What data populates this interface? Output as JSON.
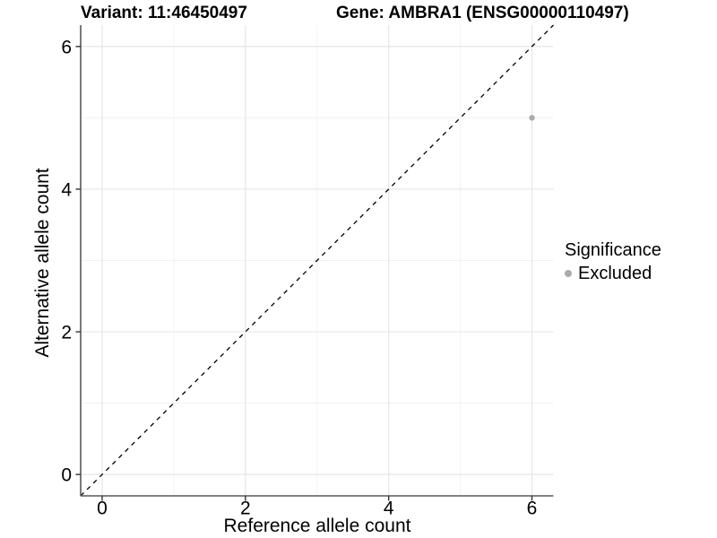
{
  "chart_data": {
    "type": "scatter",
    "title_left": "Variant: 11:46450497",
    "title_right": "Gene: AMBRA1 (ENSG00000110497)",
    "xlabel": "Reference allele count",
    "ylabel": "Alternative allele count",
    "xlim": [
      -0.3,
      6.3
    ],
    "ylim": [
      -0.3,
      6.3
    ],
    "x_major_ticks": [
      0,
      2,
      4,
      6
    ],
    "y_major_ticks": [
      0,
      2,
      4,
      6
    ],
    "x_minor_ticks": [
      1,
      3,
      5
    ],
    "y_minor_ticks": [
      1,
      3,
      5
    ],
    "grid": true,
    "identity_line": {
      "style": "dashed",
      "from": -0.3,
      "to": 6.3
    },
    "points": [
      {
        "x": 6,
        "y": 5,
        "series": "Excluded"
      }
    ],
    "legend": {
      "title": "Significance",
      "position": "right",
      "items": [
        {
          "label": "Excluded",
          "color": "#ababab"
        }
      ]
    },
    "colors": {
      "grid_major": "#e6e6e6",
      "grid_minor": "#f1f1f1",
      "axis_line": "#595959",
      "tick_mark": "#333333",
      "tick_label": "#000000",
      "identity_line": "#000000",
      "point": "#ababab"
    }
  }
}
